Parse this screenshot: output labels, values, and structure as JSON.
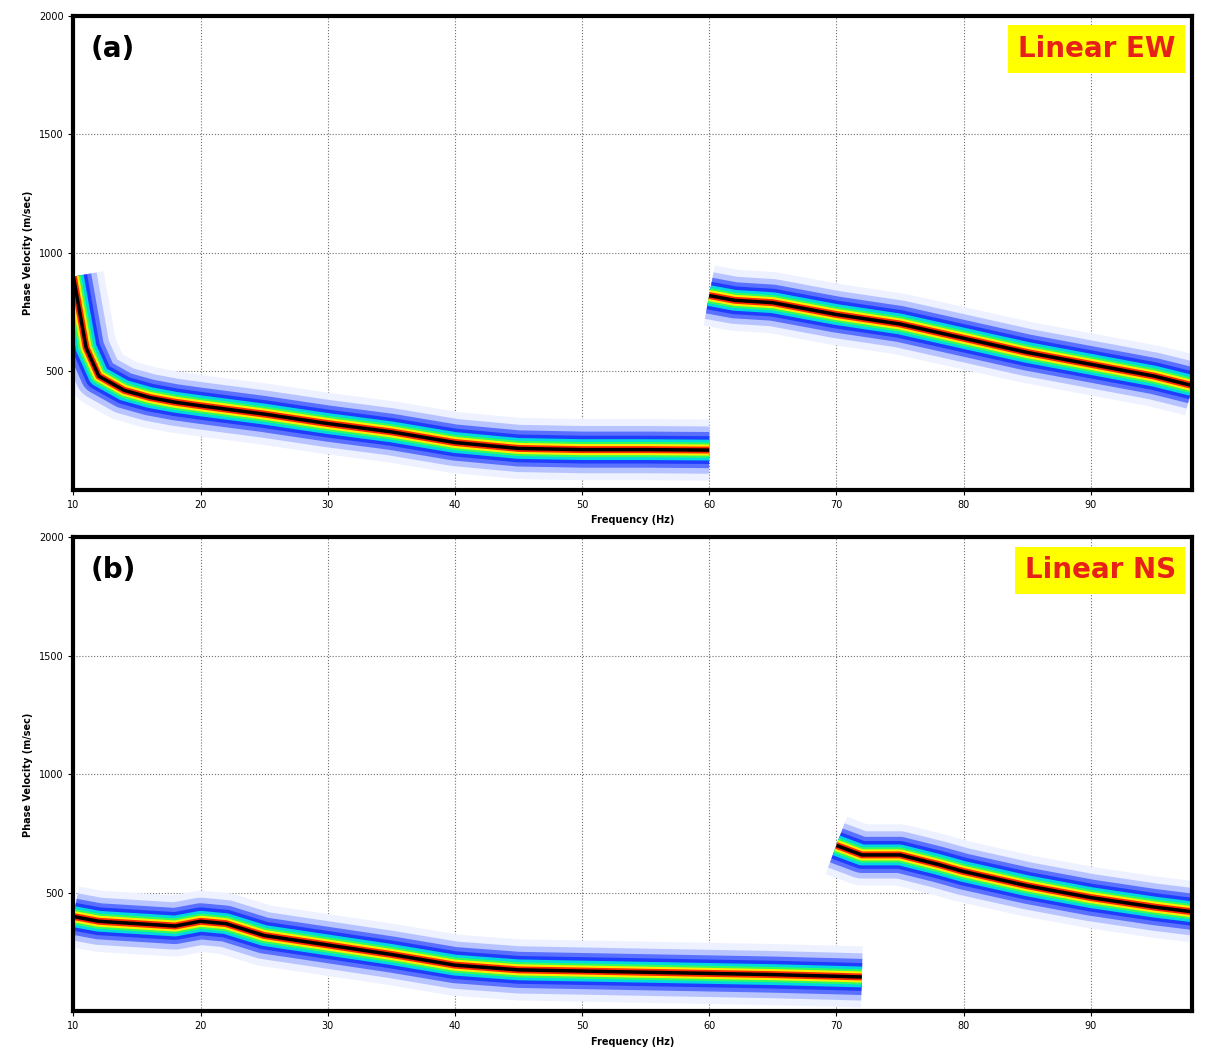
{
  "chart_data": [
    {
      "type": "line",
      "panel_label": "(a)",
      "label": "Linear EW",
      "x_label": "Frequency (Hz)",
      "y_label": "Phase Velocity (m/sec)",
      "xlim": [
        10,
        98
      ],
      "ylim": [
        0,
        2000
      ],
      "xticks": [
        10,
        20,
        30,
        40,
        50,
        60,
        70,
        80,
        90
      ],
      "yticks": [
        500,
        1000,
        1500,
        2000
      ],
      "grid": true,
      "series": [
        {
          "color": "#000000",
          "x": [
            10,
            11,
            12,
            14,
            16,
            18,
            20,
            25,
            30,
            35,
            40,
            45,
            50,
            55,
            60
          ],
          "values": [
            900,
            600,
            480,
            420,
            390,
            370,
            355,
            320,
            280,
            245,
            200,
            175,
            170,
            170,
            168
          ]
        },
        {
          "color": "#000000",
          "x": [
            60,
            62,
            65,
            70,
            75,
            80,
            85,
            90,
            95,
            98
          ],
          "values": [
            820,
            800,
            790,
            740,
            700,
            640,
            580,
            530,
            480,
            440
          ]
        }
      ]
    },
    {
      "type": "line",
      "panel_label": "(b)",
      "label": "Linear NS",
      "x_label": "Frequency (Hz)",
      "y_label": "Phase Velocity (m/sec)",
      "xlim": [
        10,
        98
      ],
      "ylim": [
        0,
        2000
      ],
      "xticks": [
        10,
        20,
        30,
        40,
        50,
        60,
        70,
        80,
        90
      ],
      "yticks": [
        500,
        1000,
        1500,
        2000
      ],
      "grid": true,
      "series": [
        {
          "color": "#000000",
          "x": [
            10,
            12,
            15,
            18,
            20,
            22,
            25,
            30,
            35,
            40,
            45,
            50,
            55,
            60,
            65,
            70,
            72
          ],
          "values": [
            400,
            380,
            370,
            360,
            380,
            370,
            320,
            280,
            240,
            195,
            175,
            170,
            165,
            160,
            155,
            148,
            145
          ]
        },
        {
          "color": "#000000",
          "x": [
            70,
            72,
            75,
            78,
            80,
            85,
            90,
            95,
            98
          ],
          "values": [
            700,
            660,
            660,
            620,
            590,
            530,
            480,
            440,
            420
          ]
        }
      ]
    }
  ]
}
